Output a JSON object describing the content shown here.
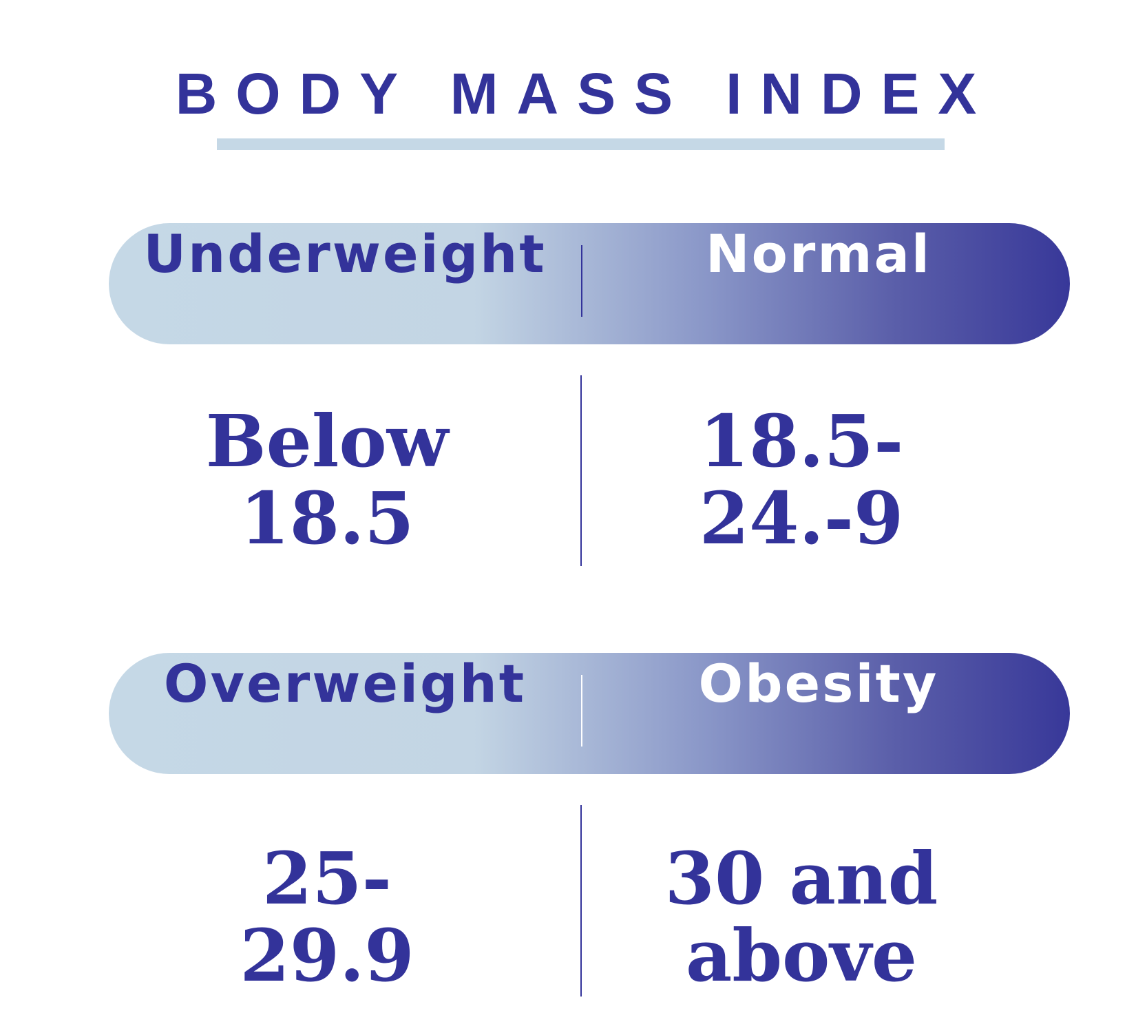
{
  "title": "BODY MASS INDEX",
  "rows": [
    {
      "categories": [
        "Underweight",
        "Normal"
      ],
      "ranges": [
        [
          "Below",
          "18.5"
        ],
        [
          "18.5-",
          "24.-9"
        ]
      ]
    },
    {
      "categories": [
        "Overweight",
        "Obesity"
      ],
      "ranges": [
        [
          "25-",
          "29.9"
        ],
        [
          "30 and",
          "above"
        ]
      ]
    }
  ]
}
